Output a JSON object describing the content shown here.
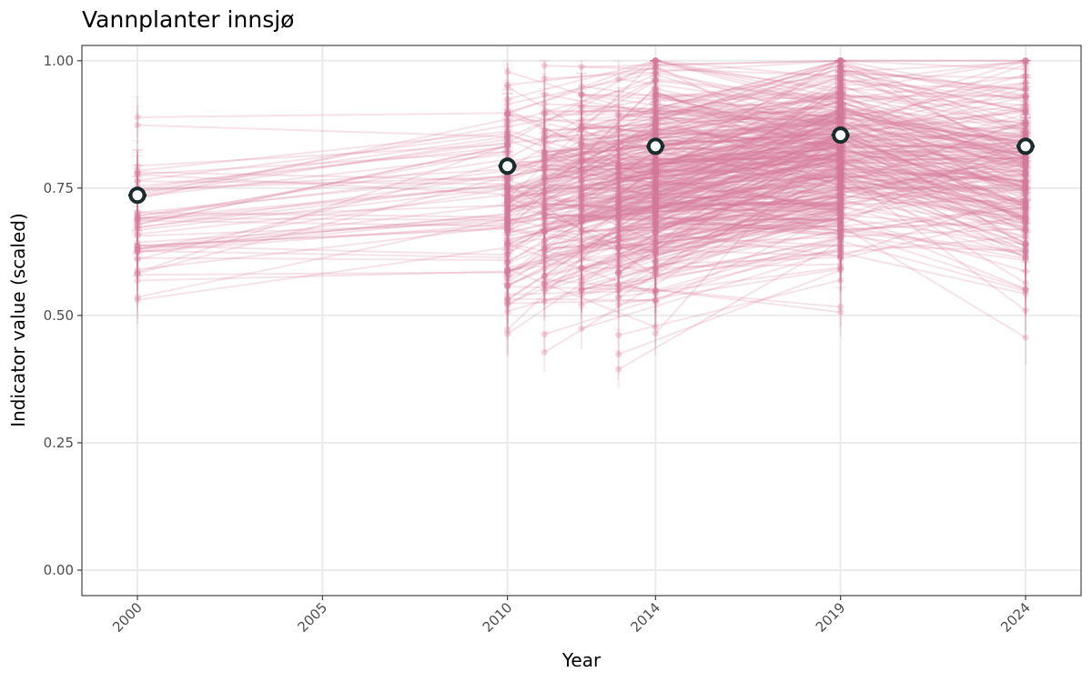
{
  "chart_data": {
    "type": "line",
    "title": "Vannplanter innsjø",
    "xlabel": "Year",
    "ylabel": "Indicator value (scaled)",
    "xlim": [
      1998.5,
      2025.5
    ],
    "ylim": [
      -0.05,
      1.03
    ],
    "x_ticks": [
      2000,
      2005,
      2010,
      2014,
      2019,
      2024
    ],
    "x_tick_labels": [
      "2000",
      "2005",
      "2010",
      "2014",
      "2019",
      "2024"
    ],
    "y_ticks": [
      0,
      0.25,
      0.5,
      0.75,
      1.0
    ],
    "y_tick_labels": [
      "0.00",
      "0.25",
      "0.50",
      "0.75",
      "1.00"
    ],
    "grid": true,
    "survey_years": [
      2000,
      2010,
      2011,
      2012,
      2013,
      2014,
      2019,
      2024
    ],
    "mean_series": {
      "x": [
        2000,
        2010,
        2014,
        2019,
        2024
      ],
      "y": [
        0.736,
        0.793,
        0.832,
        0.854,
        0.832
      ]
    },
    "lake_series_summary": {
      "count_approx": 300,
      "value_range": [
        0.35,
        1.0
      ],
      "typical_band": [
        0.55,
        0.95
      ]
    },
    "colors": {
      "lake_lines": "#d4799a",
      "mean_marker_outer": "#1a2b2b",
      "mean_marker_inner": "#ffffff",
      "grid": "#ebebeb",
      "panel_border": "#333333"
    }
  }
}
